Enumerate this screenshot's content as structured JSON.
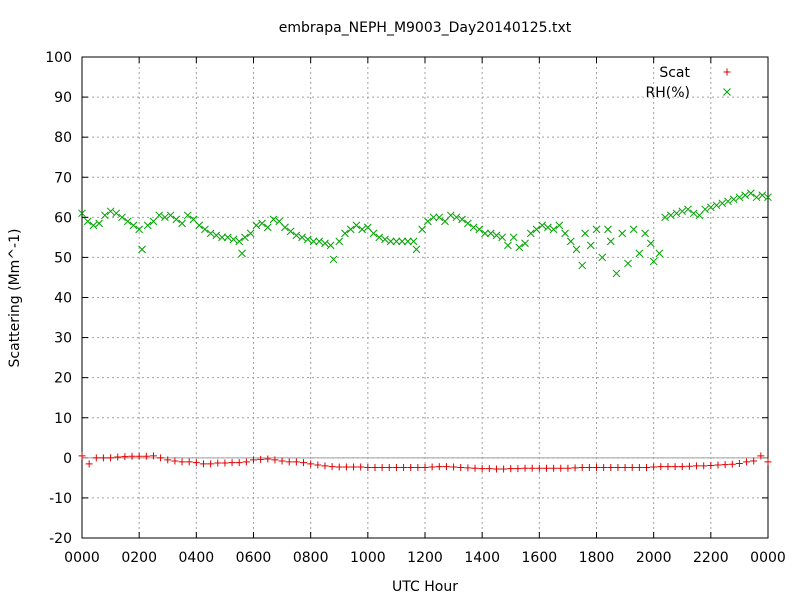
{
  "chart_data": {
    "type": "scatter",
    "title": "embrapa_NEPH_M9003_Day20140125.txt",
    "xlabel": "UTC Hour",
    "ylabel": "Scattering (Mm^-1)",
    "xlim": [
      0,
      24
    ],
    "ylim": [
      -20,
      100
    ],
    "xticks": [
      {
        "value": 0,
        "label": "0000"
      },
      {
        "value": 2,
        "label": "0200"
      },
      {
        "value": 4,
        "label": "0400"
      },
      {
        "value": 6,
        "label": "0600"
      },
      {
        "value": 8,
        "label": "0800"
      },
      {
        "value": 10,
        "label": "1000"
      },
      {
        "value": 12,
        "label": "1200"
      },
      {
        "value": 14,
        "label": "1400"
      },
      {
        "value": 16,
        "label": "1600"
      },
      {
        "value": 18,
        "label": "1800"
      },
      {
        "value": 20,
        "label": "2000"
      },
      {
        "value": 22,
        "label": "2200"
      },
      {
        "value": 24,
        "label": "0000"
      }
    ],
    "yticks": [
      -20,
      -10,
      0,
      10,
      20,
      30,
      40,
      50,
      60,
      70,
      80,
      90,
      100
    ],
    "grid": true,
    "legend_position": "top-right",
    "series": [
      {
        "name": "Scat",
        "marker": "plus",
        "color": "#e00000",
        "x": [
          0.0,
          0.25,
          0.5,
          0.75,
          1.0,
          1.25,
          1.5,
          1.75,
          2.0,
          2.25,
          2.5,
          2.75,
          3.0,
          3.25,
          3.5,
          3.75,
          4.0,
          4.25,
          4.5,
          4.75,
          5.0,
          5.25,
          5.5,
          5.75,
          6.0,
          6.25,
          6.5,
          6.75,
          7.0,
          7.25,
          7.5,
          7.75,
          8.0,
          8.25,
          8.5,
          8.75,
          9.0,
          9.25,
          9.5,
          9.75,
          10.0,
          10.25,
          10.5,
          10.75,
          11.0,
          11.25,
          11.5,
          11.75,
          12.0,
          12.25,
          12.5,
          12.75,
          13.0,
          13.25,
          13.5,
          13.75,
          14.0,
          14.25,
          14.5,
          14.75,
          15.0,
          15.25,
          15.5,
          15.75,
          16.0,
          16.25,
          16.5,
          16.75,
          17.0,
          17.25,
          17.5,
          17.75,
          18.0,
          18.25,
          18.5,
          18.75,
          19.0,
          19.25,
          19.5,
          19.75,
          20.0,
          20.25,
          20.5,
          20.75,
          21.0,
          21.25,
          21.5,
          21.75,
          22.0,
          22.25,
          22.5,
          22.75,
          23.0,
          23.25,
          23.5,
          23.75,
          24.0
        ],
        "y": [
          0.5,
          -1.5,
          0.0,
          0.0,
          0.0,
          0.2,
          0.3,
          0.4,
          0.4,
          0.4,
          0.5,
          0.0,
          -0.5,
          -0.8,
          -1.0,
          -1.0,
          -1.2,
          -1.5,
          -1.5,
          -1.3,
          -1.3,
          -1.2,
          -1.2,
          -1.0,
          -0.5,
          -0.4,
          -0.3,
          -0.5,
          -0.8,
          -1.0,
          -1.0,
          -1.2,
          -1.5,
          -1.8,
          -2.0,
          -2.2,
          -2.3,
          -2.3,
          -2.3,
          -2.3,
          -2.4,
          -2.4,
          -2.4,
          -2.4,
          -2.4,
          -2.4,
          -2.4,
          -2.4,
          -2.4,
          -2.3,
          -2.2,
          -2.2,
          -2.3,
          -2.4,
          -2.5,
          -2.6,
          -2.7,
          -2.7,
          -2.8,
          -2.8,
          -2.7,
          -2.7,
          -2.6,
          -2.6,
          -2.6,
          -2.6,
          -2.6,
          -2.6,
          -2.6,
          -2.5,
          -2.4,
          -2.4,
          -2.4,
          -2.4,
          -2.4,
          -2.4,
          -2.4,
          -2.4,
          -2.4,
          -2.4,
          -2.3,
          -2.2,
          -2.2,
          -2.2,
          -2.2,
          -2.1,
          -2.0,
          -2.0,
          -1.9,
          -1.8,
          -1.7,
          -1.6,
          -1.4,
          -1.0,
          -0.8,
          0.5,
          -1.0
        ]
      },
      {
        "name": "RH(%)",
        "marker": "cross",
        "color": "#00a000",
        "x": [
          0.0,
          0.2,
          0.4,
          0.6,
          0.8,
          1.0,
          1.2,
          1.4,
          1.6,
          1.8,
          2.0,
          2.1,
          2.3,
          2.5,
          2.7,
          2.9,
          3.1,
          3.3,
          3.5,
          3.7,
          3.9,
          4.1,
          4.3,
          4.5,
          4.7,
          4.9,
          5.1,
          5.3,
          5.5,
          5.6,
          5.7,
          5.9,
          6.1,
          6.3,
          6.5,
          6.7,
          6.9,
          7.1,
          7.3,
          7.5,
          7.7,
          7.9,
          8.1,
          8.3,
          8.5,
          8.7,
          8.8,
          9.0,
          9.2,
          9.4,
          9.6,
          9.8,
          10.0,
          10.2,
          10.4,
          10.6,
          10.8,
          11.0,
          11.2,
          11.4,
          11.6,
          11.7,
          11.9,
          12.1,
          12.3,
          12.5,
          12.7,
          12.9,
          13.1,
          13.3,
          13.5,
          13.7,
          13.9,
          14.1,
          14.3,
          14.5,
          14.7,
          14.9,
          15.1,
          15.3,
          15.5,
          15.7,
          15.9,
          16.1,
          16.3,
          16.5,
          16.7,
          16.9,
          17.1,
          17.3,
          17.5,
          17.6,
          17.8,
          18.0,
          18.2,
          18.4,
          18.5,
          18.7,
          18.9,
          19.1,
          19.3,
          19.5,
          19.7,
          19.9,
          20.0,
          20.2,
          20.4,
          20.6,
          20.8,
          21.0,
          21.2,
          21.4,
          21.6,
          21.8,
          22.0,
          22.2,
          22.4,
          22.6,
          22.8,
          23.0,
          23.2,
          23.4,
          23.6,
          23.8,
          24.0
        ],
        "y": [
          61.0,
          59.0,
          58.0,
          58.5,
          60.5,
          61.5,
          61.0,
          60.0,
          59.0,
          58.0,
          57.0,
          52.0,
          58.0,
          59.0,
          60.5,
          60.0,
          60.5,
          59.5,
          58.5,
          60.5,
          59.5,
          58.0,
          57.0,
          56.0,
          55.5,
          55.0,
          55.0,
          54.5,
          54.0,
          51.0,
          55.0,
          56.0,
          58.0,
          58.5,
          57.5,
          59.5,
          59.0,
          57.5,
          56.5,
          55.5,
          55.0,
          54.5,
          54.0,
          54.0,
          53.5,
          53.0,
          49.5,
          54.0,
          56.0,
          57.0,
          58.0,
          57.0,
          57.5,
          56.0,
          55.0,
          54.5,
          54.0,
          54.0,
          54.0,
          54.0,
          54.0,
          52.0,
          57.0,
          59.0,
          60.0,
          60.0,
          59.0,
          60.5,
          60.0,
          59.5,
          58.5,
          57.5,
          57.0,
          56.0,
          56.0,
          55.5,
          55.0,
          53.0,
          55.0,
          52.5,
          53.5,
          56.0,
          57.0,
          58.0,
          57.5,
          57.0,
          58.0,
          56.0,
          54.0,
          52.0,
          48.0,
          56.0,
          53.0,
          57.0,
          50.0,
          57.0,
          54.0,
          46.0,
          56.0,
          48.5,
          57.0,
          51.0,
          56.0,
          53.5,
          49.0,
          51.0,
          60.0,
          60.5,
          61.0,
          61.5,
          62.0,
          61.0,
          60.5,
          62.0,
          62.5,
          63.0,
          63.5,
          64.0,
          64.5,
          65.0,
          65.5,
          66.0,
          65.0,
          65.5,
          65.0
        ]
      }
    ]
  }
}
